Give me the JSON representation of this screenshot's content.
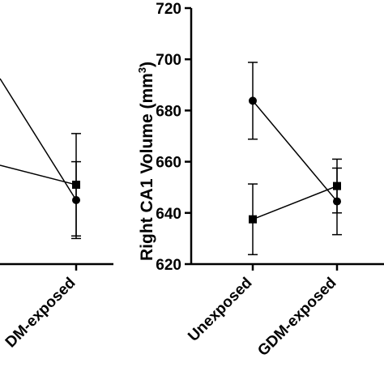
{
  "chart_data": [
    {
      "type": "line",
      "panel": "left (cropped)",
      "categories": [
        "Unexposed",
        "GDM-exposed"
      ],
      "visible_category_label": "DM-exposed",
      "series": [
        {
          "marker": "circle",
          "values": [
            null,
            645
          ],
          "error": [
            null,
            15
          ]
        },
        {
          "marker": "square",
          "values": [
            null,
            651
          ],
          "error": [
            null,
            20
          ]
        }
      ]
    },
    {
      "type": "line",
      "panel": "right",
      "ylabel": "Right CA1 Volume (mm",
      "ylabel_sup": "3",
      "ylabel_close": ")",
      "ylim": [
        620,
        720
      ],
      "yticks": [
        "620",
        "640",
        "660",
        "680",
        "700",
        "720"
      ],
      "categories": [
        "Unexposed",
        "GDM-exposed"
      ],
      "series": [
        {
          "marker": "circle",
          "values": [
            683.8,
            644.5
          ],
          "error": [
            15,
            13
          ]
        },
        {
          "marker": "square",
          "values": [
            637.5,
            650.5
          ],
          "error": [
            13.8,
            10.5
          ]
        }
      ]
    }
  ]
}
